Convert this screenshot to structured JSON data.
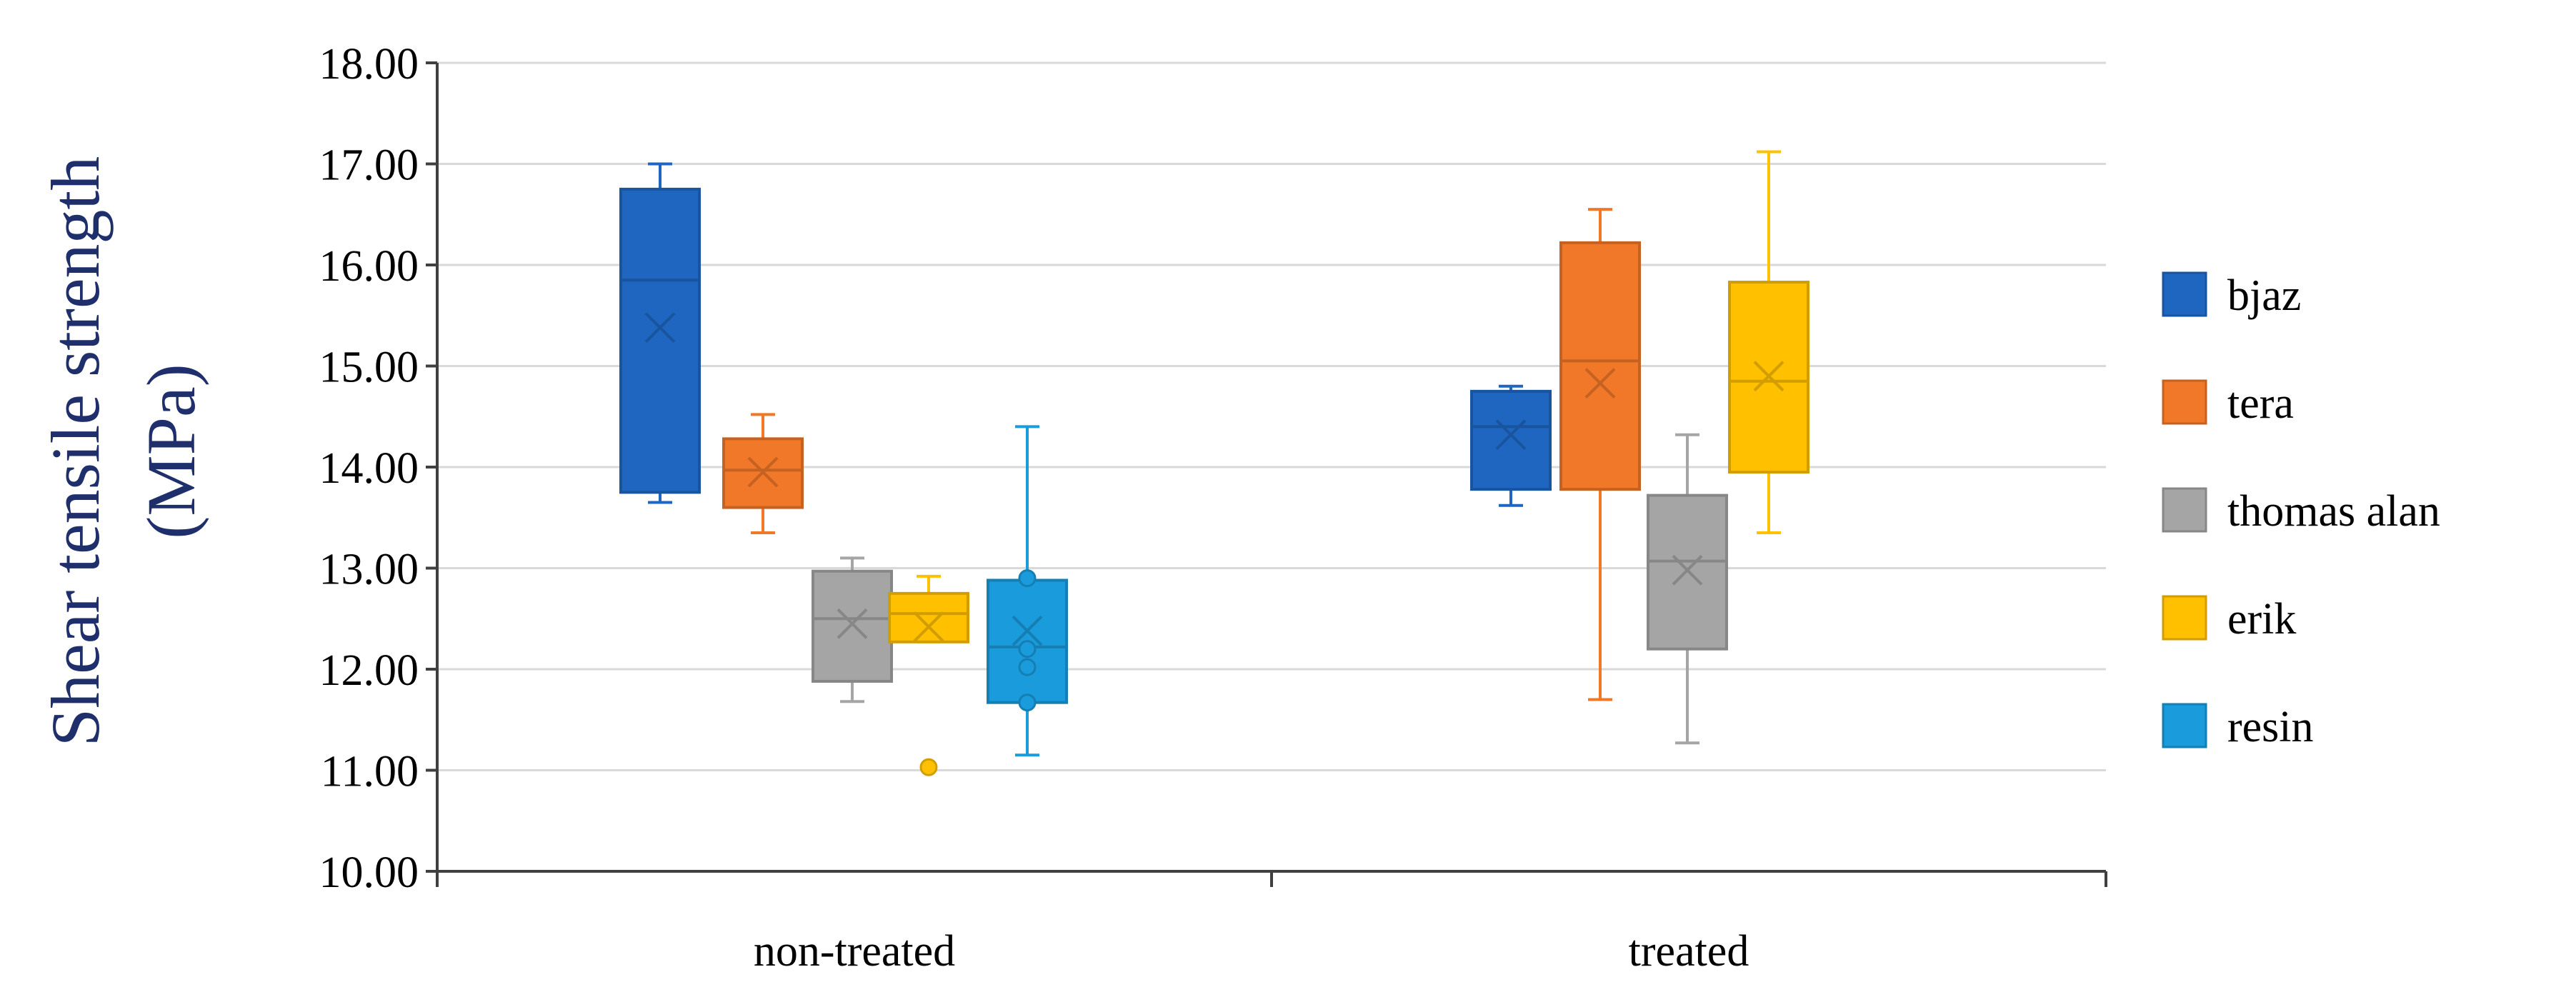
{
  "chart_data": {
    "type": "box",
    "ylabel_line1": "Shear tensile strength",
    "ylabel_line2": "(MPa)",
    "ylim": [
      10,
      18
    ],
    "y_ticks": [
      "10.00",
      "11.00",
      "12.00",
      "13.00",
      "14.00",
      "15.00",
      "16.00",
      "17.00",
      "18.00"
    ],
    "grid": true,
    "legend_position": "right",
    "categories": [
      "non-treated",
      "treated"
    ],
    "series": [
      {
        "name": "bjaz",
        "color": "#1f66c1",
        "boxes": [
          {
            "min": 13.65,
            "q1": 13.75,
            "median": 15.85,
            "q3": 16.75,
            "max": 17.0,
            "mean": 15.38,
            "points": [],
            "outliers": []
          },
          {
            "min": 13.62,
            "q1": 13.78,
            "median": 14.4,
            "q3": 14.75,
            "max": 14.8,
            "mean": 14.32,
            "points": [],
            "outliers": []
          }
        ]
      },
      {
        "name": "tera",
        "color": "#f07828",
        "boxes": [
          {
            "min": 13.35,
            "q1": 13.6,
            "median": 13.97,
            "q3": 14.28,
            "max": 14.52,
            "mean": 13.95,
            "points": [],
            "outliers": []
          },
          {
            "min": 11.7,
            "q1": 13.78,
            "median": 15.05,
            "q3": 16.22,
            "max": 16.55,
            "mean": 14.83,
            "points": [],
            "outliers": []
          }
        ]
      },
      {
        "name": "thomas alan",
        "color": "#a5a5a5",
        "boxes": [
          {
            "min": 11.68,
            "q1": 11.88,
            "median": 12.5,
            "q3": 12.97,
            "max": 13.1,
            "mean": 12.45,
            "points": [],
            "outliers": []
          },
          {
            "min": 11.27,
            "q1": 12.2,
            "median": 13.07,
            "q3": 13.72,
            "max": 14.32,
            "mean": 12.98,
            "points": [],
            "outliers": []
          }
        ]
      },
      {
        "name": "erik",
        "color": "#ffc000",
        "boxes": [
          {
            "min": 12.27,
            "q1": 12.27,
            "median": 12.55,
            "q3": 12.75,
            "max": 12.92,
            "mean": 12.42,
            "points": [],
            "outliers": [
              11.03
            ]
          },
          {
            "min": 13.35,
            "q1": 13.95,
            "median": 14.85,
            "q3": 15.83,
            "max": 17.12,
            "mean": 14.9,
            "points": [],
            "outliers": []
          }
        ]
      },
      {
        "name": "resin",
        "color": "#199bdc",
        "boxes": [
          {
            "min": 11.15,
            "q1": 11.67,
            "median": 12.22,
            "q3": 12.88,
            "max": 14.4,
            "mean": 12.38,
            "points": [
              12.9,
              12.2,
              12.02,
              11.67
            ],
            "outliers": []
          },
          null
        ]
      }
    ]
  }
}
